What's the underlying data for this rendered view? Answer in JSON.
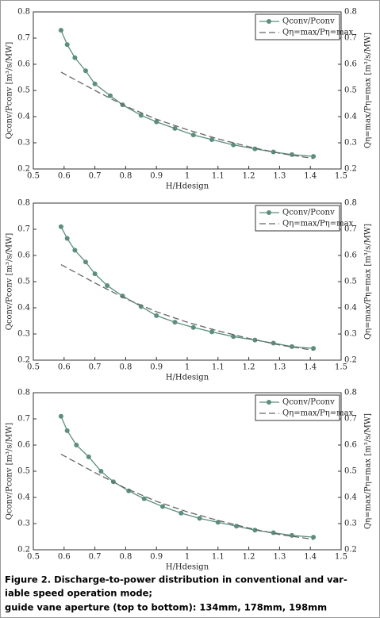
{
  "chart_data": [
    {
      "type": "line",
      "xlabel": "H/Hdesign",
      "ylabel": "Qconv/Pconv [m³/s/MW]",
      "y2label": "Qη=max/Pη=max [m³/s/MW]",
      "xlim": [
        0.5,
        1.5
      ],
      "xticks": [
        0.5,
        0.6,
        0.7,
        0.8,
        0.9,
        1,
        1.1,
        1.2,
        1.3,
        1.4,
        1.5
      ],
      "ylim": [
        0.2,
        0.8
      ],
      "yticks": [
        0.2,
        0.3,
        0.4,
        0.5,
        0.6,
        0.7,
        0.8
      ],
      "y2lim": [
        0.2,
        0.8
      ],
      "y2ticks": [
        0.2,
        0.3,
        0.4,
        0.5,
        0.6,
        0.7,
        0.8
      ],
      "grid": false,
      "legend": "upper right",
      "series": [
        {
          "name": "Qconv/Pconv",
          "color": "#5b8f7c",
          "marker": true,
          "x": [
            0.59,
            0.61,
            0.635,
            0.67,
            0.7,
            0.75,
            0.79,
            0.85,
            0.9,
            0.96,
            1.02,
            1.08,
            1.15,
            1.22,
            1.28,
            1.34,
            1.41
          ],
          "values": [
            0.73,
            0.675,
            0.625,
            0.575,
            0.525,
            0.48,
            0.445,
            0.405,
            0.38,
            0.355,
            0.33,
            0.312,
            0.292,
            0.277,
            0.265,
            0.255,
            0.248
          ]
        },
        {
          "name": "Qη=max/Pη=max",
          "color": "#666666",
          "dashed": true,
          "x": [
            0.59,
            0.7,
            0.8,
            0.9,
            1.0,
            1.1,
            1.2,
            1.3,
            1.41
          ],
          "values": [
            0.57,
            0.5,
            0.44,
            0.39,
            0.35,
            0.315,
            0.285,
            0.26,
            0.24
          ]
        }
      ]
    },
    {
      "type": "line",
      "xlabel": "H/Hdesign",
      "ylabel": "Qconv/Pconv [m³/s/MW]",
      "y2label": "Qη=max/Pη=max [m³/s/MW]",
      "xlim": [
        0.5,
        1.5
      ],
      "xticks": [
        0.5,
        0.6,
        0.7,
        0.8,
        0.9,
        1,
        1.1,
        1.2,
        1.3,
        1.4,
        1.5
      ],
      "ylim": [
        0.2,
        0.8
      ],
      "yticks": [
        0.2,
        0.3,
        0.4,
        0.5,
        0.6,
        0.7,
        0.8
      ],
      "y2lim": [
        0.2,
        0.8
      ],
      "y2ticks": [
        0.2,
        0.3,
        0.4,
        0.5,
        0.6,
        0.7,
        0.8
      ],
      "grid": false,
      "legend": "upper right",
      "series": [
        {
          "name": "Qconv/Pconv",
          "color": "#5b8f7c",
          "marker": true,
          "x": [
            0.59,
            0.61,
            0.635,
            0.67,
            0.7,
            0.74,
            0.79,
            0.85,
            0.9,
            0.96,
            1.02,
            1.08,
            1.15,
            1.22,
            1.28,
            1.34,
            1.41
          ],
          "values": [
            0.71,
            0.665,
            0.62,
            0.575,
            0.53,
            0.485,
            0.445,
            0.405,
            0.37,
            0.345,
            0.325,
            0.308,
            0.29,
            0.277,
            0.265,
            0.252,
            0.245
          ]
        },
        {
          "name": "Qη=max/Pη=max",
          "color": "#666666",
          "dashed": true,
          "x": [
            0.59,
            0.7,
            0.8,
            0.9,
            1.0,
            1.1,
            1.2,
            1.3,
            1.41
          ],
          "values": [
            0.565,
            0.495,
            0.435,
            0.385,
            0.345,
            0.312,
            0.283,
            0.258,
            0.238
          ]
        }
      ]
    },
    {
      "type": "line",
      "xlabel": "H/Hdesign",
      "ylabel": "Qconv/Pconv [m³/s/MW]",
      "y2label": "Qη=max/Pη=max [m³/s/MW]",
      "xlim": [
        0.5,
        1.5
      ],
      "xticks": [
        0.5,
        0.6,
        0.7,
        0.8,
        0.9,
        1,
        1.1,
        1.2,
        1.3,
        1.4,
        1.5
      ],
      "ylim": [
        0.2,
        0.8
      ],
      "yticks": [
        0.2,
        0.3,
        0.4,
        0.5,
        0.6,
        0.7,
        0.8
      ],
      "y2lim": [
        0.2,
        0.8
      ],
      "y2ticks": [
        0.2,
        0.3,
        0.4,
        0.5,
        0.6,
        0.7,
        0.8
      ],
      "grid": false,
      "legend": "upper right",
      "series": [
        {
          "name": "Qconv/Pconv",
          "color": "#5b8f7c",
          "marker": true,
          "x": [
            0.59,
            0.61,
            0.64,
            0.68,
            0.72,
            0.76,
            0.81,
            0.86,
            0.92,
            0.98,
            1.04,
            1.1,
            1.16,
            1.22,
            1.28,
            1.34,
            1.41
          ],
          "values": [
            0.71,
            0.655,
            0.6,
            0.555,
            0.5,
            0.46,
            0.425,
            0.395,
            0.365,
            0.34,
            0.32,
            0.305,
            0.29,
            0.275,
            0.265,
            0.255,
            0.248
          ]
        },
        {
          "name": "Qη=max/Pη=max",
          "color": "#666666",
          "dashed": true,
          "x": [
            0.59,
            0.7,
            0.8,
            0.9,
            1.0,
            1.1,
            1.2,
            1.3,
            1.41
          ],
          "values": [
            0.565,
            0.495,
            0.435,
            0.385,
            0.345,
            0.312,
            0.283,
            0.258,
            0.24
          ]
        }
      ]
    }
  ],
  "caption": [
    "Figure 2. Discharge-to-power distribution in conventional and var-",
    "iable speed operation mode;",
    "guide vane aperture (top to bottom): 134mm, 178mm, 198mm"
  ]
}
